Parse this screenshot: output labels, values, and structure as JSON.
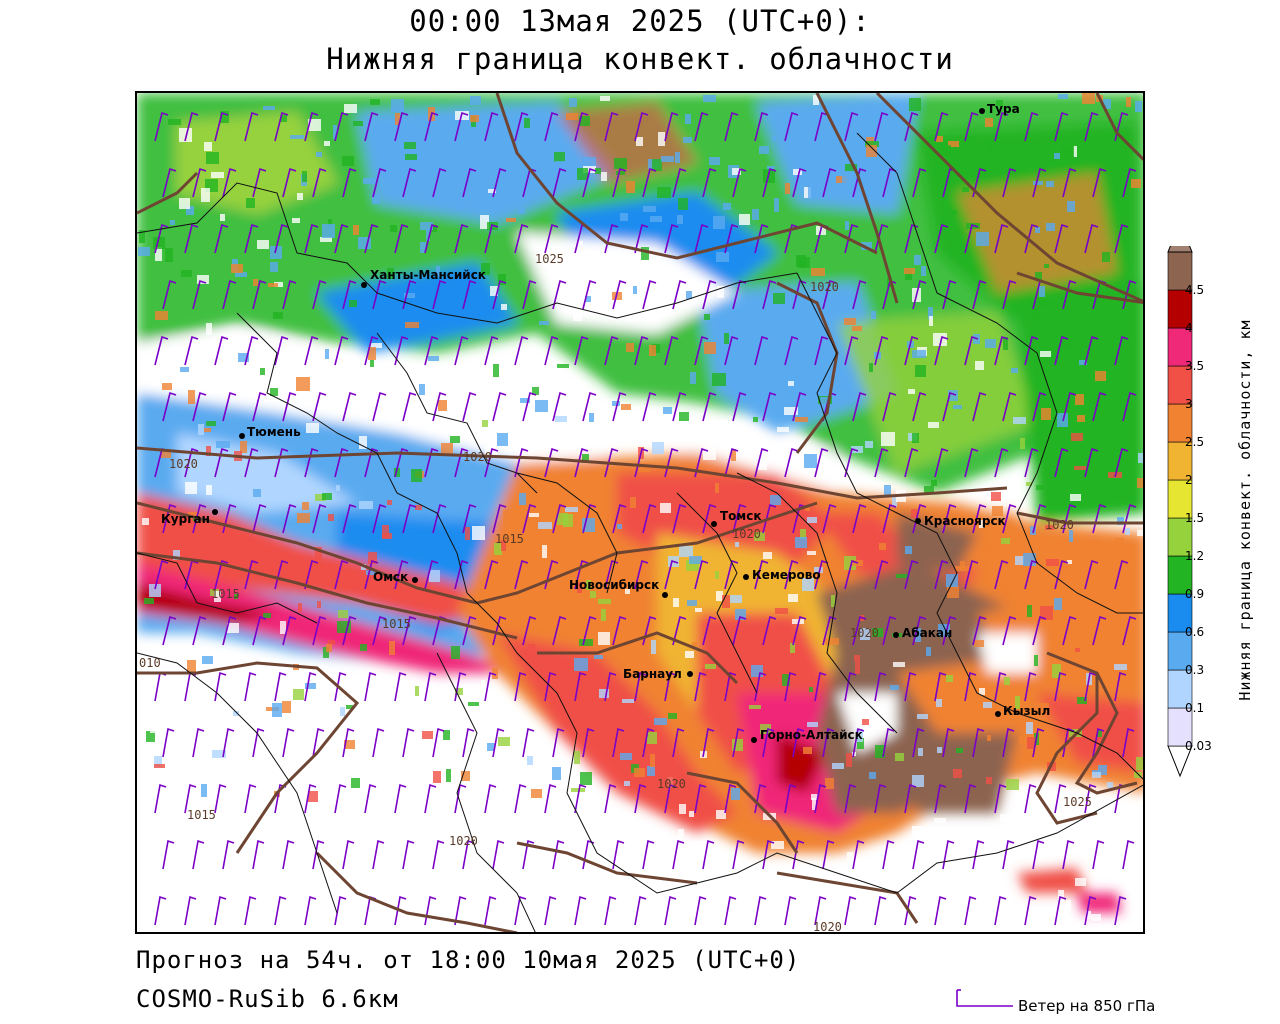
{
  "header": {
    "title_line1": "00:00 13мая 2025 (UTC+0):",
    "title_line2": "Нижняя граница конвект. облачности"
  },
  "footer": {
    "forecast": "Прогноз на 54ч. от 18:00 10мая 2025 (UTC+0)",
    "model": "COSMO-RuSib 6.6км",
    "wind_legend": "Ветер на 850 гПа"
  },
  "colorbar": {
    "title": "Нижняя граница конвект. облачности, км",
    "levels": [
      "0.03",
      "0.1",
      "0.3",
      "0.6",
      "0.9",
      "1.2",
      "1.5",
      "2",
      "2.5",
      "3",
      "3.5",
      "4",
      "4.5"
    ],
    "colors": [
      "#e6e0ff",
      "#b0d6ff",
      "#5aaaf0",
      "#1a8cf0",
      "#22b422",
      "#96d23c",
      "#e6e632",
      "#f0b432",
      "#f08232",
      "#f05046",
      "#f02878",
      "#b40000",
      "#8c6450",
      "#a08070"
    ]
  },
  "cities": [
    {
      "name": "Тура",
      "label": "Тура"
    },
    {
      "name": "Ханты-Мансийск",
      "label": "Ханты-Мансийск"
    },
    {
      "name": "Тюмень",
      "label": "Тюмень"
    },
    {
      "name": "Курган",
      "label": "Курган"
    },
    {
      "name": "Омск",
      "label": "Омск"
    },
    {
      "name": "Новосибирск",
      "label": "Новосибирск"
    },
    {
      "name": "Томск",
      "label": "Томск"
    },
    {
      "name": "Кемерово",
      "label": "Кемерово"
    },
    {
      "name": "Красноярск",
      "label": "Красноярск"
    },
    {
      "name": "Абакан",
      "label": "Абакан"
    },
    {
      "name": "Барнаул",
      "label": "Барнаул"
    },
    {
      "name": "Горно-Алтайск",
      "label": "Горно-Алтайск"
    },
    {
      "name": "Кызыл",
      "label": "Кызыл"
    }
  ],
  "isobars": [
    {
      "value": "1025"
    },
    {
      "value": "1020"
    },
    {
      "value": "1020"
    },
    {
      "value": "1020"
    },
    {
      "value": "1015"
    },
    {
      "value": "1015"
    },
    {
      "value": "1015"
    },
    {
      "value": "010"
    },
    {
      "value": "1015"
    },
    {
      "value": "1020"
    },
    {
      "value": "1020"
    },
    {
      "value": "1020"
    },
    {
      "value": "1025"
    },
    {
      "value": "1020"
    },
    {
      "value": "1020"
    },
    {
      "value": "1020"
    }
  ]
}
